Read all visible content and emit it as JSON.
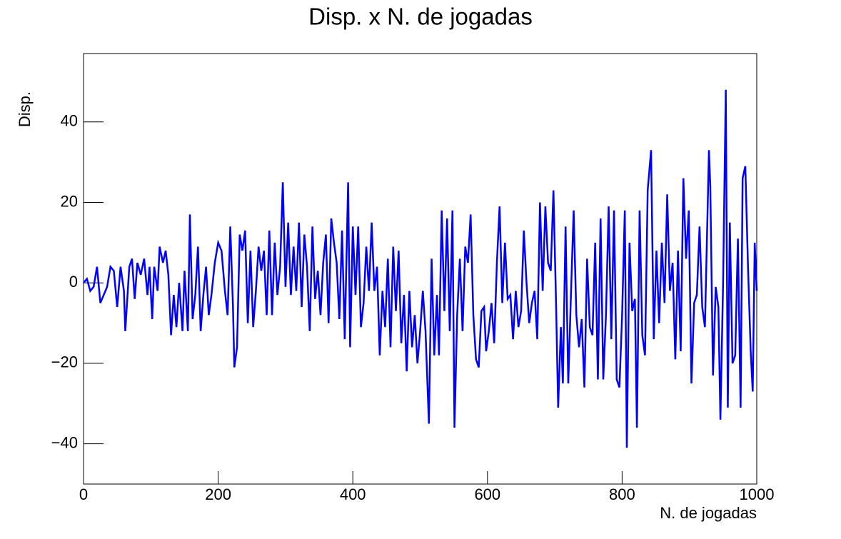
{
  "chart_data": {
    "type": "line",
    "title": "Disp. x N. de jogadas",
    "xlabel": "N. de jogadas",
    "ylabel": "Disp.",
    "color": "#0000ff",
    "x": [
      0,
      5,
      10,
      15,
      20,
      25,
      30,
      35,
      40,
      45,
      50,
      55,
      60,
      62,
      68,
      72,
      76,
      80,
      85,
      90,
      95,
      98,
      102,
      105,
      110,
      113,
      118,
      122,
      126,
      130,
      134,
      138,
      142,
      147,
      150,
      155,
      158,
      162,
      166,
      170,
      174,
      178,
      182,
      186,
      190,
      195,
      200,
      205,
      210,
      214,
      218,
      222,
      224,
      228,
      232,
      236,
      240,
      244,
      248,
      252,
      256,
      260,
      264,
      268,
      272,
      276,
      280,
      284,
      288,
      292,
      296,
      300,
      304,
      308,
      312,
      316,
      320,
      324,
      328,
      332,
      336,
      340,
      344,
      348,
      352,
      356,
      360,
      364,
      368,
      372,
      376,
      380,
      384,
      388,
      393,
      396,
      400,
      404,
      408,
      412,
      416,
      420,
      424,
      428,
      432,
      436,
      440,
      444,
      448,
      452,
      456,
      460,
      464,
      468,
      472,
      476,
      480,
      484,
      488,
      492,
      496,
      500,
      504,
      508,
      513,
      517,
      521,
      525,
      528,
      532,
      536,
      540,
      544,
      548,
      551,
      555,
      559,
      563,
      567,
      571,
      575,
      579,
      583,
      587,
      591,
      595,
      598,
      602,
      606,
      610,
      614,
      618,
      622,
      626,
      630,
      634,
      638,
      642,
      646,
      650,
      654,
      658,
      662,
      666,
      670,
      674,
      678,
      682,
      686,
      690,
      694,
      698,
      702,
      705,
      709,
      712,
      716,
      720,
      724,
      728,
      732,
      736,
      740,
      744,
      748,
      752,
      756,
      760,
      764,
      768,
      772,
      776,
      780,
      784,
      788,
      792,
      796,
      800,
      804,
      807,
      811,
      815,
      819,
      822,
      826,
      830,
      834,
      838,
      843,
      847,
      851,
      855,
      859,
      863,
      867,
      871,
      875,
      879,
      883,
      887,
      891,
      895,
      899,
      903,
      907,
      911,
      915,
      919,
      923,
      929,
      931,
      935,
      939,
      943,
      946,
      950,
      954,
      957,
      960,
      964,
      968,
      972,
      976,
      979,
      983,
      987,
      991,
      994,
      997,
      1000
    ],
    "values": [
      0,
      1,
      -2,
      -1,
      4,
      -5,
      -3,
      -1,
      4,
      3,
      -6,
      4,
      -2,
      -12,
      4,
      6,
      -4,
      5,
      2,
      6,
      -3,
      4,
      -9,
      4,
      -2,
      9,
      5,
      8,
      2,
      -13,
      -3,
      -11,
      0,
      -12,
      3,
      -12,
      17,
      -9,
      -3,
      9,
      -12,
      -3,
      4,
      -8,
      -3,
      5,
      10,
      8,
      -2,
      -8,
      14,
      -6,
      -21,
      -16,
      12,
      8,
      13,
      -10,
      8,
      -11,
      -2,
      9,
      3,
      8,
      -8,
      13,
      -8,
      10,
      -3,
      4,
      25,
      -1,
      15,
      -3,
      9,
      -2,
      15,
      -6,
      12,
      4,
      -12,
      14,
      -4,
      3,
      -8,
      5,
      12,
      -10,
      16,
      10,
      5,
      -9,
      13,
      -14,
      25,
      -16,
      14,
      -3,
      14,
      -11,
      -5,
      9,
      -2,
      15,
      -2,
      4,
      -18,
      -2,
      -11,
      6,
      -16,
      9,
      -7,
      8,
      -15,
      -3,
      -22,
      -2,
      -16,
      -8,
      -20,
      -12,
      -2,
      -12,
      -35,
      6,
      -18,
      -3,
      -18,
      18,
      -7,
      16,
      -12,
      18,
      -36,
      -8,
      6,
      -12,
      9,
      5,
      17,
      -8,
      -19,
      -21,
      -7,
      -6,
      -17,
      -12,
      -5,
      -15,
      5,
      19,
      -5,
      10,
      -4,
      -3,
      -14,
      -2,
      -11,
      -7,
      13,
      0,
      -10,
      -5,
      -2,
      -14,
      20,
      -2,
      19,
      5,
      3,
      23,
      -6,
      -31,
      -11,
      -25,
      14,
      -25,
      -3,
      18,
      -8,
      -16,
      -9,
      -26,
      6,
      -11,
      -13,
      10,
      -24,
      16,
      -24,
      -8,
      19,
      -14,
      18,
      -24,
      -26,
      -8,
      18,
      -41,
      10,
      -7,
      -4,
      -36,
      18,
      -13,
      -18,
      23,
      33,
      -14,
      8,
      -10,
      10,
      -5,
      22,
      -2,
      5,
      -19,
      8,
      -17,
      26,
      6,
      18,
      -25,
      -5,
      -3,
      14,
      -6,
      -11,
      33,
      24,
      -23,
      -1,
      -6,
      -34,
      0,
      48,
      -31,
      15,
      -20,
      -18,
      11,
      -31,
      26,
      29,
      4,
      -17,
      -27,
      10,
      -2
    ],
    "xlim": [
      0,
      1000
    ],
    "xticks": [
      0,
      200,
      400,
      600,
      800,
      1000
    ],
    "ylim": [
      -50,
      57
    ],
    "yticks": [
      {
        "value": -40,
        "label": "−40"
      },
      {
        "value": -20,
        "label": "−20"
      },
      0,
      20,
      40
    ]
  }
}
